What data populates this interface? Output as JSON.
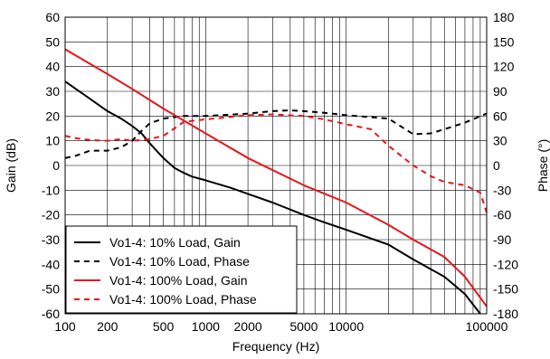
{
  "chart_data": {
    "type": "line",
    "title": "",
    "xlabel": "Frequency (Hz)",
    "ylabel": "Gain (dB)",
    "y2label": "Phase (°)",
    "x_scale": "log",
    "xlim": [
      100,
      100000
    ],
    "ylim": [
      -60,
      60
    ],
    "y2lim": [
      -180,
      180
    ],
    "grid": true,
    "legend_position": "bottom-left",
    "x_ticks": [
      100,
      200,
      500,
      1000,
      2000,
      5000,
      10000,
      100000
    ],
    "x_tick_labels": [
      "100",
      "200",
      "500",
      "1000",
      "2000",
      "5000",
      "10000",
      "100000"
    ],
    "y_ticks": [
      60,
      50,
      40,
      30,
      20,
      10,
      0,
      -10,
      -20,
      -30,
      -40,
      -50,
      -60
    ],
    "y_tick_labels": [
      "60",
      "50",
      "40",
      "30",
      "20",
      "10",
      "0",
      "-10",
      "-20",
      "-30",
      "-40",
      "-50",
      "-60"
    ],
    "y2_ticks": [
      180,
      150,
      120,
      90,
      60,
      30,
      0,
      -30,
      -60,
      -90,
      -120,
      -150,
      -180
    ],
    "y2_tick_labels": [
      "180",
      "150",
      "120",
      "90",
      "60",
      "30",
      "0",
      "-30",
      "-60",
      "-90",
      "-120",
      "-150",
      "-180"
    ],
    "series": [
      {
        "name": "Vo1-4: 10% Load, Gain",
        "axis": "left",
        "color": "#000000",
        "dash": "solid",
        "x": [
          100,
          150,
          200,
          250,
          300,
          350,
          400,
          500,
          600,
          700,
          800,
          1000,
          1500,
          2000,
          3000,
          5000,
          7000,
          10000,
          20000,
          30000,
          50000,
          70000,
          90000
        ],
        "y": [
          34,
          27,
          22,
          19,
          16,
          13,
          9,
          3,
          -1,
          -3,
          -4.5,
          -6,
          -9,
          -11.5,
          -15,
          -20,
          -23,
          -26,
          -32,
          -38,
          -45,
          -52,
          -60
        ]
      },
      {
        "name": "Vo1-4: 10% Load, Phase",
        "axis": "right",
        "color": "#000000",
        "dash": "dashed",
        "x": [
          100,
          120,
          150,
          200,
          250,
          300,
          350,
          400,
          500,
          700,
          1000,
          2000,
          3000,
          4000,
          5000,
          7000,
          10000,
          20000,
          30000,
          40000,
          50000,
          70000,
          100000
        ],
        "y": [
          9,
          12,
          18,
          18,
          22,
          30,
          42,
          51,
          57,
          60,
          60,
          63,
          66,
          67,
          66,
          64,
          61,
          57,
          38,
          39,
          44,
          52,
          63
        ]
      },
      {
        "name": "Vo1-4: 100% Load, Gain",
        "axis": "left",
        "color": "#e8141b",
        "dash": "solid",
        "x": [
          100,
          200,
          300,
          500,
          1000,
          2000,
          5000,
          10000,
          20000,
          30000,
          50000,
          70000,
          100000
        ],
        "y": [
          47,
          37,
          31,
          23,
          13,
          3,
          -8,
          -15,
          -24,
          -30,
          -37,
          -45,
          -57
        ]
      },
      {
        "name": "Vo1-4: 100% Load, Phase",
        "axis": "right",
        "color": "#e8141b",
        "dash": "dashed",
        "x": [
          100,
          120,
          150,
          200,
          250,
          300,
          350,
          400,
          500,
          600,
          700,
          1000,
          2000,
          3000,
          5000,
          7000,
          10000,
          15000,
          20000,
          30000,
          40000,
          50000,
          70000,
          90000,
          100000
        ],
        "y": [
          36,
          33,
          31,
          30,
          32,
          30,
          31,
          32,
          36,
          45,
          53,
          56,
          61,
          62,
          60,
          56,
          50,
          44,
          24,
          0,
          -13,
          -20,
          -24,
          -33,
          -57
        ]
      }
    ],
    "legend": [
      "Vo1-4: 10% Load, Gain",
      "Vo1-4: 10% Load, Phase",
      "Vo1-4: 100% Load, Gain",
      "Vo1-4: 100% Load, Phase"
    ]
  }
}
